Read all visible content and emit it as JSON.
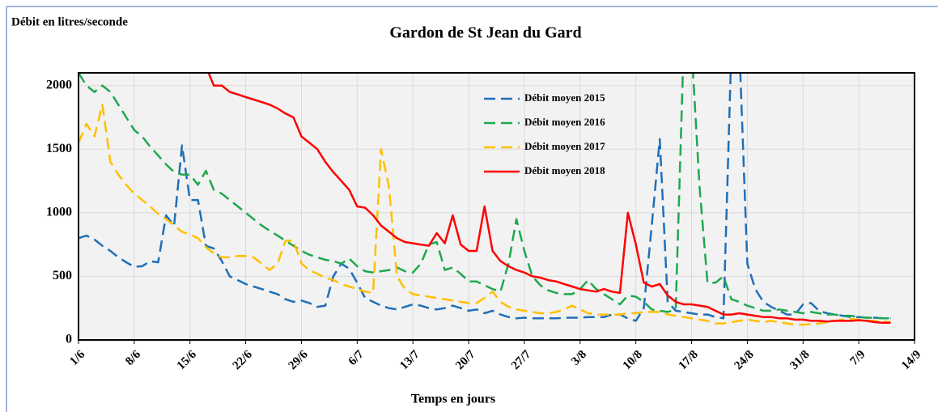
{
  "chart_data": {
    "type": "line",
    "title": "Gardon de St Jean du Gard",
    "ylabel": "Débit en litres/seconde",
    "xlabel": "Temps en jours",
    "xlim": [
      0,
      105
    ],
    "ylim": [
      0,
      2100
    ],
    "yticks": [
      0,
      500,
      1000,
      1500,
      2000
    ],
    "xticks": [
      {
        "value": 0,
        "label": "1/6"
      },
      {
        "value": 7,
        "label": "8/6"
      },
      {
        "value": 14,
        "label": "15/6"
      },
      {
        "value": 21,
        "label": "22/6"
      },
      {
        "value": 28,
        "label": "29/6"
      },
      {
        "value": 35,
        "label": "6/7"
      },
      {
        "value": 42,
        "label": "13/7"
      },
      {
        "value": 49,
        "label": "20/7"
      },
      {
        "value": 56,
        "label": "27/7"
      },
      {
        "value": 63,
        "label": "3/8"
      },
      {
        "value": 70,
        "label": "10/8"
      },
      {
        "value": 77,
        "label": "17/8"
      },
      {
        "value": 84,
        "label": "24/8"
      },
      {
        "value": 91,
        "label": "31/8"
      },
      {
        "value": 98,
        "label": "7/9"
      },
      {
        "value": 105,
        "label": "14/9"
      }
    ],
    "grid": true,
    "x": [
      0,
      1,
      2,
      3,
      4,
      5,
      6,
      7,
      8,
      9,
      10,
      11,
      12,
      13,
      14,
      15,
      16,
      17,
      18,
      19,
      20,
      21,
      22,
      23,
      24,
      25,
      26,
      27,
      28,
      29,
      30,
      31,
      32,
      33,
      34,
      35,
      36,
      37,
      38,
      39,
      40,
      41,
      42,
      43,
      44,
      45,
      46,
      47,
      48,
      49,
      50,
      51,
      52,
      53,
      54,
      55,
      56,
      57,
      58,
      59,
      60,
      61,
      62,
      63,
      64,
      65,
      66,
      67,
      68,
      69,
      70,
      71,
      72,
      73,
      74,
      75,
      76,
      77,
      78,
      79,
      80,
      81,
      82,
      83,
      84,
      85,
      86,
      87,
      88,
      89,
      90,
      91,
      92,
      93,
      94,
      95,
      96,
      97,
      98,
      99,
      100,
      101,
      102
    ],
    "series": [
      {
        "name": "Débit moyen 2015",
        "color": "#1f6fb8",
        "dashed": true,
        "values": [
          800,
          820,
          790,
          740,
          700,
          650,
          610,
          575,
          580,
          620,
          610,
          980,
          900,
          1530,
          1100,
          1100,
          740,
          720,
          620,
          500,
          470,
          440,
          420,
          400,
          380,
          360,
          320,
          300,
          310,
          290,
          260,
          270,
          500,
          600,
          560,
          450,
          330,
          300,
          270,
          250,
          240,
          260,
          280,
          270,
          250,
          240,
          250,
          270,
          250,
          230,
          240,
          210,
          230,
          200,
          180,
          170,
          175,
          170,
          170,
          170,
          170,
          175,
          175,
          175,
          180,
          180,
          180,
          200,
          200,
          170,
          150,
          250,
          900,
          1580,
          300,
          230,
          220,
          210,
          200,
          200,
          180,
          170,
          2300,
          2300,
          600,
          400,
          300,
          260,
          230,
          200,
          200,
          280,
          290,
          230,
          210,
          200,
          190,
          180,
          180,
          175,
          175,
          170,
          170
        ]
      },
      {
        "name": "Débit moyen 2016",
        "color": "#1fa84f",
        "dashed": true,
        "values": [
          2100,
          2000,
          1950,
          2000,
          1950,
          1850,
          1750,
          1650,
          1600,
          1520,
          1450,
          1380,
          1320,
          1300,
          1300,
          1220,
          1330,
          1180,
          1150,
          1100,
          1050,
          1000,
          950,
          900,
          860,
          820,
          780,
          740,
          700,
          670,
          650,
          630,
          620,
          600,
          640,
          580,
          540,
          530,
          540,
          550,
          570,
          540,
          530,
          600,
          750,
          770,
          550,
          570,
          520,
          460,
          460,
          430,
          400,
          380,
          600,
          950,
          700,
          500,
          430,
          390,
          370,
          360,
          360,
          400,
          470,
          400,
          360,
          320,
          280,
          350,
          340,
          300,
          240,
          230,
          220,
          240,
          2300,
          2300,
          1200,
          450,
          450,
          500,
          320,
          300,
          270,
          250,
          230,
          230,
          240,
          230,
          220,
          210,
          220,
          210,
          200,
          200,
          190,
          190,
          180,
          175,
          175,
          170,
          170
        ]
      },
      {
        "name": "Débit moyen 2017",
        "color": "#ffc000",
        "dashed": true,
        "values": [
          1550,
          1700,
          1600,
          1850,
          1400,
          1300,
          1220,
          1150,
          1100,
          1050,
          990,
          950,
          900,
          850,
          830,
          800,
          730,
          680,
          650,
          650,
          660,
          660,
          650,
          600,
          550,
          600,
          780,
          780,
          600,
          550,
          520,
          490,
          470,
          440,
          420,
          400,
          380,
          370,
          1500,
          1200,
          500,
          400,
          360,
          350,
          340,
          330,
          320,
          310,
          300,
          290,
          290,
          330,
          380,
          300,
          260,
          240,
          230,
          220,
          210,
          210,
          220,
          240,
          270,
          240,
          210,
          200,
          200,
          200,
          200,
          210,
          210,
          220,
          220,
          220,
          200,
          190,
          180,
          170,
          160,
          150,
          130,
          130,
          140,
          150,
          160,
          150,
          140,
          150,
          140,
          130,
          120,
          120,
          125,
          130,
          140,
          150,
          160,
          165,
          160,
          150,
          150,
          145,
          140
        ]
      },
      {
        "name": "Débit moyen 2018",
        "color": "#ff0000",
        "dashed": false,
        "values": [
          null,
          null,
          null,
          null,
          null,
          null,
          null,
          null,
          null,
          null,
          null,
          null,
          null,
          null,
          null,
          null,
          2150,
          2000,
          2000,
          1950,
          1930,
          1910,
          1890,
          1870,
          1850,
          1820,
          1780,
          1750,
          1600,
          1550,
          1500,
          1400,
          1320,
          1250,
          1180,
          1050,
          1040,
          980,
          900,
          850,
          800,
          770,
          760,
          750,
          740,
          840,
          760,
          980,
          750,
          700,
          700,
          1050,
          700,
          620,
          580,
          550,
          530,
          500,
          490,
          470,
          460,
          440,
          420,
          400,
          390,
          380,
          400,
          380,
          370,
          1000,
          750,
          450,
          420,
          440,
          350,
          300,
          280,
          280,
          270,
          260,
          230,
          200,
          200,
          210,
          200,
          190,
          180,
          180,
          170,
          170,
          160,
          160,
          150,
          150,
          145,
          150,
          150,
          150,
          155,
          150,
          140,
          135,
          135
        ]
      }
    ]
  }
}
